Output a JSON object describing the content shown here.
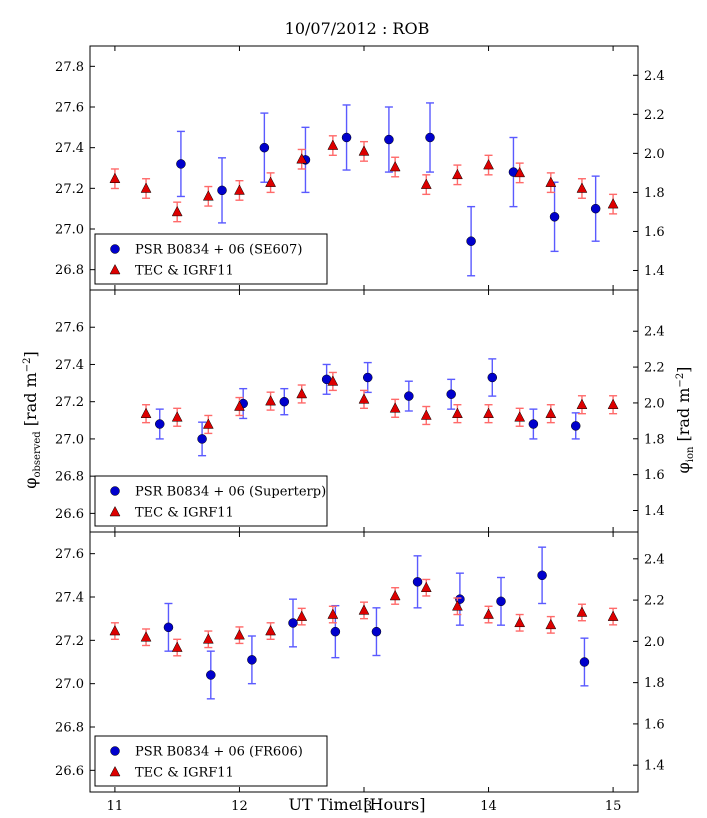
{
  "figure": {
    "title": "10/07/2012 : ROB",
    "xlabel": "UT Time [Hours]",
    "ylabel_left": {
      "base": "φ",
      "sub": "observed",
      "unit": " [rad m",
      "sup": "−2",
      "close": "]"
    },
    "ylabel_right": {
      "base": "φ",
      "sub": "ion",
      "unit": " [rad m",
      "sup": "−2",
      "close": "]"
    },
    "colors": {
      "psr": "#0000cc",
      "psr_err": "#5a5aff",
      "tec": "#dd0000",
      "tec_err": "#ff6a6a"
    }
  },
  "chart_data": [
    {
      "type": "scatter",
      "panel": "top",
      "xlim": [
        10.8,
        15.2
      ],
      "ylim_left": [
        26.7,
        27.9
      ],
      "ylim_right": [
        1.3,
        2.55
      ],
      "xticks": [
        11,
        12,
        13,
        14,
        15
      ],
      "xtick_labels": [],
      "yticks_left": [
        26.8,
        27.0,
        27.2,
        27.4,
        27.6,
        27.8
      ],
      "yticks_left_labels": [
        "26.8",
        "27.0",
        "27.2",
        "27.4",
        "27.6",
        "27.8"
      ],
      "yticks_right": [
        1.4,
        1.6,
        1.8,
        2.0,
        2.2,
        2.4
      ],
      "yticks_right_labels": [
        "1.4",
        "1.6",
        "1.8",
        "2.0",
        "2.2",
        "2.4"
      ],
      "legend": {
        "position": "lower-left",
        "entries": [
          "PSR B0834 + 06 (SE607)",
          "TEC & IGRF11"
        ]
      },
      "series": [
        {
          "name": "PSR B0834 + 06 (SE607)",
          "axis": "left",
          "marker": "circle",
          "x": [
            11.53,
            11.86,
            12.2,
            12.53,
            12.86,
            13.2,
            13.53,
            13.86,
            14.2,
            14.53,
            14.86
          ],
          "y": [
            27.32,
            27.19,
            27.4,
            27.34,
            27.45,
            27.44,
            27.45,
            26.94,
            27.28,
            27.06,
            27.1
          ],
          "err": [
            0.16,
            0.16,
            0.17,
            0.16,
            0.16,
            0.16,
            0.17,
            0.17,
            0.17,
            0.17,
            0.16
          ]
        },
        {
          "name": "TEC & IGRF11",
          "axis": "right",
          "marker": "triangle",
          "x": [
            11.0,
            11.25,
            11.5,
            11.75,
            12.0,
            12.25,
            12.5,
            12.75,
            13.0,
            13.25,
            13.5,
            13.75,
            14.0,
            14.25,
            14.5,
            14.75,
            15.0
          ],
          "y": [
            1.87,
            1.82,
            1.7,
            1.78,
            1.81,
            1.85,
            1.97,
            2.04,
            2.01,
            1.93,
            1.84,
            1.89,
            1.94,
            1.9,
            1.85,
            1.82,
            1.74
          ],
          "err": [
            0.05,
            0.05,
            0.05,
            0.05,
            0.05,
            0.05,
            0.05,
            0.05,
            0.05,
            0.05,
            0.05,
            0.05,
            0.05,
            0.05,
            0.05,
            0.05,
            0.05
          ]
        }
      ]
    },
    {
      "type": "scatter",
      "panel": "middle",
      "xlim": [
        10.8,
        15.2
      ],
      "ylim_left": [
        26.5,
        27.8
      ],
      "ylim_right": [
        1.28,
        2.63
      ],
      "xticks": [
        11,
        12,
        13,
        14,
        15
      ],
      "xtick_labels": [],
      "yticks_left": [
        26.6,
        26.8,
        27.0,
        27.2,
        27.4,
        27.6
      ],
      "yticks_left_labels": [
        "26.6",
        "26.8",
        "27.0",
        "27.2",
        "27.4",
        "27.6"
      ],
      "yticks_right": [
        1.4,
        1.6,
        1.8,
        2.0,
        2.2,
        2.4
      ],
      "yticks_right_labels": [
        "1.4",
        "1.6",
        "1.8",
        "2.0",
        "2.2",
        "2.4"
      ],
      "legend": {
        "position": "lower-left",
        "entries": [
          "PSR B0834 + 06 (Superterp)",
          "TEC & IGRF11"
        ]
      },
      "series": [
        {
          "name": "PSR B0834 + 06 (Superterp)",
          "axis": "left",
          "marker": "circle",
          "x": [
            11.36,
            11.7,
            12.03,
            12.36,
            12.7,
            13.03,
            13.36,
            13.7,
            14.03,
            14.36,
            14.7
          ],
          "y": [
            27.08,
            27.0,
            27.19,
            27.2,
            27.32,
            27.33,
            27.23,
            27.24,
            27.33,
            27.08,
            27.07
          ],
          "err": [
            0.08,
            0.09,
            0.08,
            0.07,
            0.08,
            0.08,
            0.08,
            0.08,
            0.1,
            0.08,
            0.07
          ]
        },
        {
          "name": "TEC & IGRF11",
          "axis": "right",
          "marker": "triangle",
          "x": [
            11.25,
            11.5,
            11.75,
            12.0,
            12.25,
            12.5,
            12.75,
            13.0,
            13.25,
            13.5,
            13.75,
            14.0,
            14.25,
            14.5,
            14.75,
            15.0
          ],
          "y": [
            1.94,
            1.92,
            1.88,
            1.98,
            2.01,
            2.05,
            2.12,
            2.02,
            1.97,
            1.93,
            1.94,
            1.94,
            1.92,
            1.94,
            1.99,
            1.99
          ],
          "err": [
            0.05,
            0.05,
            0.05,
            0.05,
            0.05,
            0.05,
            0.05,
            0.05,
            0.05,
            0.05,
            0.05,
            0.05,
            0.05,
            0.05,
            0.05,
            0.05
          ]
        }
      ]
    },
    {
      "type": "scatter",
      "panel": "bottom",
      "xlim": [
        10.8,
        15.2
      ],
      "ylim_left": [
        26.5,
        27.7
      ],
      "ylim_right": [
        1.27,
        2.53
      ],
      "xticks": [
        11,
        12,
        13,
        14,
        15
      ],
      "xtick_labels": [
        "11",
        "12",
        "13",
        "14",
        "15"
      ],
      "yticks_left": [
        26.6,
        26.8,
        27.0,
        27.2,
        27.4,
        27.6
      ],
      "yticks_left_labels": [
        "26.6",
        "26.8",
        "27.0",
        "27.2",
        "27.4",
        "27.6"
      ],
      "yticks_right": [
        1.4,
        1.6,
        1.8,
        2.0,
        2.2,
        2.4
      ],
      "yticks_right_labels": [
        "1.4",
        "1.6",
        "1.8",
        "2.0",
        "2.2",
        "2.4"
      ],
      "legend": {
        "position": "lower-left",
        "entries": [
          "PSR B0834 + 06 (FR606)",
          "TEC & IGRF11"
        ]
      },
      "series": [
        {
          "name": "PSR B0834 + 06 (FR606)",
          "axis": "left",
          "marker": "circle",
          "x": [
            11.43,
            11.77,
            12.1,
            12.43,
            12.77,
            13.1,
            13.43,
            13.77,
            14.1,
            14.43,
            14.77
          ],
          "y": [
            27.26,
            27.04,
            27.11,
            27.28,
            27.24,
            27.24,
            27.47,
            27.39,
            27.38,
            27.5,
            27.1
          ],
          "err": [
            0.11,
            0.11,
            0.11,
            0.11,
            0.12,
            0.11,
            0.12,
            0.12,
            0.11,
            0.13,
            0.11
          ]
        },
        {
          "name": "TEC & IGRF11",
          "axis": "right",
          "marker": "triangle",
          "x": [
            11.0,
            11.25,
            11.5,
            11.75,
            12.0,
            12.25,
            12.5,
            12.75,
            13.0,
            13.25,
            13.5,
            13.75,
            14.0,
            14.25,
            14.5,
            14.75,
            15.0
          ],
          "y": [
            2.05,
            2.02,
            1.97,
            2.01,
            2.03,
            2.05,
            2.12,
            2.13,
            2.15,
            2.22,
            2.26,
            2.17,
            2.13,
            2.09,
            2.08,
            2.14,
            2.12
          ],
          "err": [
            0.04,
            0.04,
            0.04,
            0.04,
            0.04,
            0.04,
            0.04,
            0.04,
            0.04,
            0.04,
            0.04,
            0.04,
            0.04,
            0.04,
            0.04,
            0.04,
            0.04
          ]
        }
      ]
    }
  ]
}
